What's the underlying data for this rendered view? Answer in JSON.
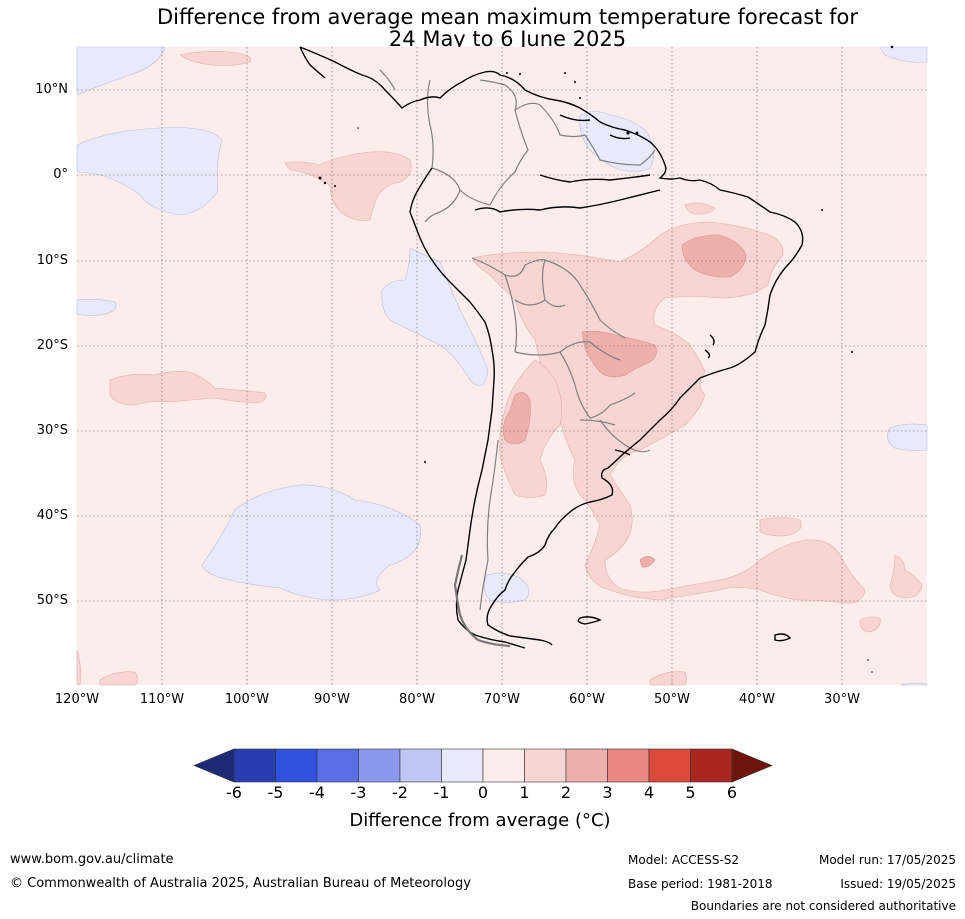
{
  "title_line1": "Difference from average mean maximum temperature forecast for",
  "title_line2": "24 May to 6 June 2025",
  "latitude_labels": [
    "10°N",
    "0°",
    "10°S",
    "20°S",
    "30°S",
    "40°S",
    "50°S"
  ],
  "longitude_labels": [
    "120°W",
    "110°W",
    "100°W",
    "90°W",
    "80°W",
    "70°W",
    "60°W",
    "50°W",
    "40°W",
    "30°W"
  ],
  "colorbar": {
    "label": "Difference from average (°C)",
    "ticks": [
      "-6",
      "-5",
      "-4",
      "-3",
      "-2",
      "-1",
      "0",
      "1",
      "2",
      "3",
      "4",
      "5",
      "6"
    ],
    "colors": [
      "#1e2a78",
      "#2a3db0",
      "#3050e0",
      "#5a6fe6",
      "#8a98ee",
      "#c0c6f4",
      "#e8eafc",
      "#fcecea",
      "#f6d5d2",
      "#eeb0aa",
      "#e88880",
      "#dc4a3c",
      "#a8261e",
      "#70140e"
    ]
  },
  "footer": {
    "website": "www.bom.gov.au/climate",
    "copyright": "© Commonwealth of Australia 2025, Australian Bureau of Meteorology",
    "model": "Model: ACCESS-S2",
    "base_period": "Base period: 1981-2018",
    "model_run": "Model run: 17/05/2025",
    "issued": "Issued: 19/05/2025",
    "disclaimer": "Boundaries are not considered authoritative"
  }
}
